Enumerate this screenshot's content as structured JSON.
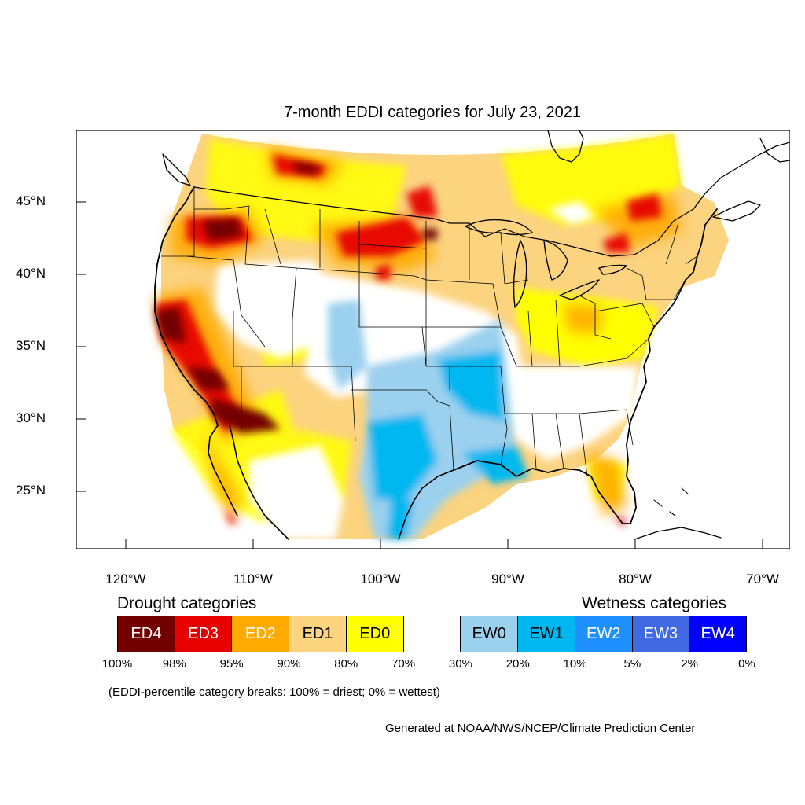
{
  "title": "7-month EDDI categories for July 23, 2021",
  "map": {
    "lat_labels": [
      "45°N",
      "40°N",
      "35°N",
      "30°N",
      "25°N"
    ],
    "lat_values": [
      45,
      40,
      35,
      30,
      25
    ],
    "lon_labels": [
      "120°W",
      "110°W",
      "100°W",
      "90°W",
      "80°W",
      "70°W"
    ],
    "lon_values": [
      -120,
      -110,
      -100,
      -90,
      -80,
      -70
    ],
    "colors": {
      "ED4": "#730000",
      "ED3": "#e60000",
      "ED2": "#ffaa00",
      "ED1": "#fcd37f",
      "ED0": "#ffff00",
      "neutral": "#ffffff",
      "EW0": "#9bd0ee",
      "EW1": "#00b7f0",
      "EW2": "#1e90ff",
      "EW3": "#4169e1",
      "EW4": "#0000ff"
    }
  },
  "legend": {
    "drought_heading": "Drought categories",
    "wetness_heading": "Wetness categories",
    "categories": [
      {
        "label": "ED4",
        "color": "#730000",
        "text_color": "#ffffff"
      },
      {
        "label": "ED3",
        "color": "#e60000",
        "text_color": "#ffffff"
      },
      {
        "label": "ED2",
        "color": "#ffaa00",
        "text_color": "#ffffff"
      },
      {
        "label": "ED1",
        "color": "#fcd37f",
        "text_color": "#000000"
      },
      {
        "label": "ED0",
        "color": "#ffff00",
        "text_color": "#000000"
      },
      {
        "label": "",
        "color": "#ffffff",
        "text_color": "#000000"
      },
      {
        "label": "EW0",
        "color": "#9bd0ee",
        "text_color": "#000000"
      },
      {
        "label": "EW1",
        "color": "#00b7f0",
        "text_color": "#000000"
      },
      {
        "label": "EW2",
        "color": "#1e90ff",
        "text_color": "#ffffff"
      },
      {
        "label": "EW3",
        "color": "#4169e1",
        "text_color": "#ffffff"
      },
      {
        "label": "EW4",
        "color": "#0000ff",
        "text_color": "#ffffff"
      }
    ],
    "breaks": [
      "100%",
      "98%",
      "95%",
      "90%",
      "80%",
      "70%",
      "30%",
      "20%",
      "10%",
      "5%",
      "2%",
      "0%"
    ]
  },
  "note": "(EDDI-percentile category breaks: 100% = driest; 0% = wettest)",
  "credit": "Generated at NOAA/NWS/NCEP/Climate Prediction Center"
}
